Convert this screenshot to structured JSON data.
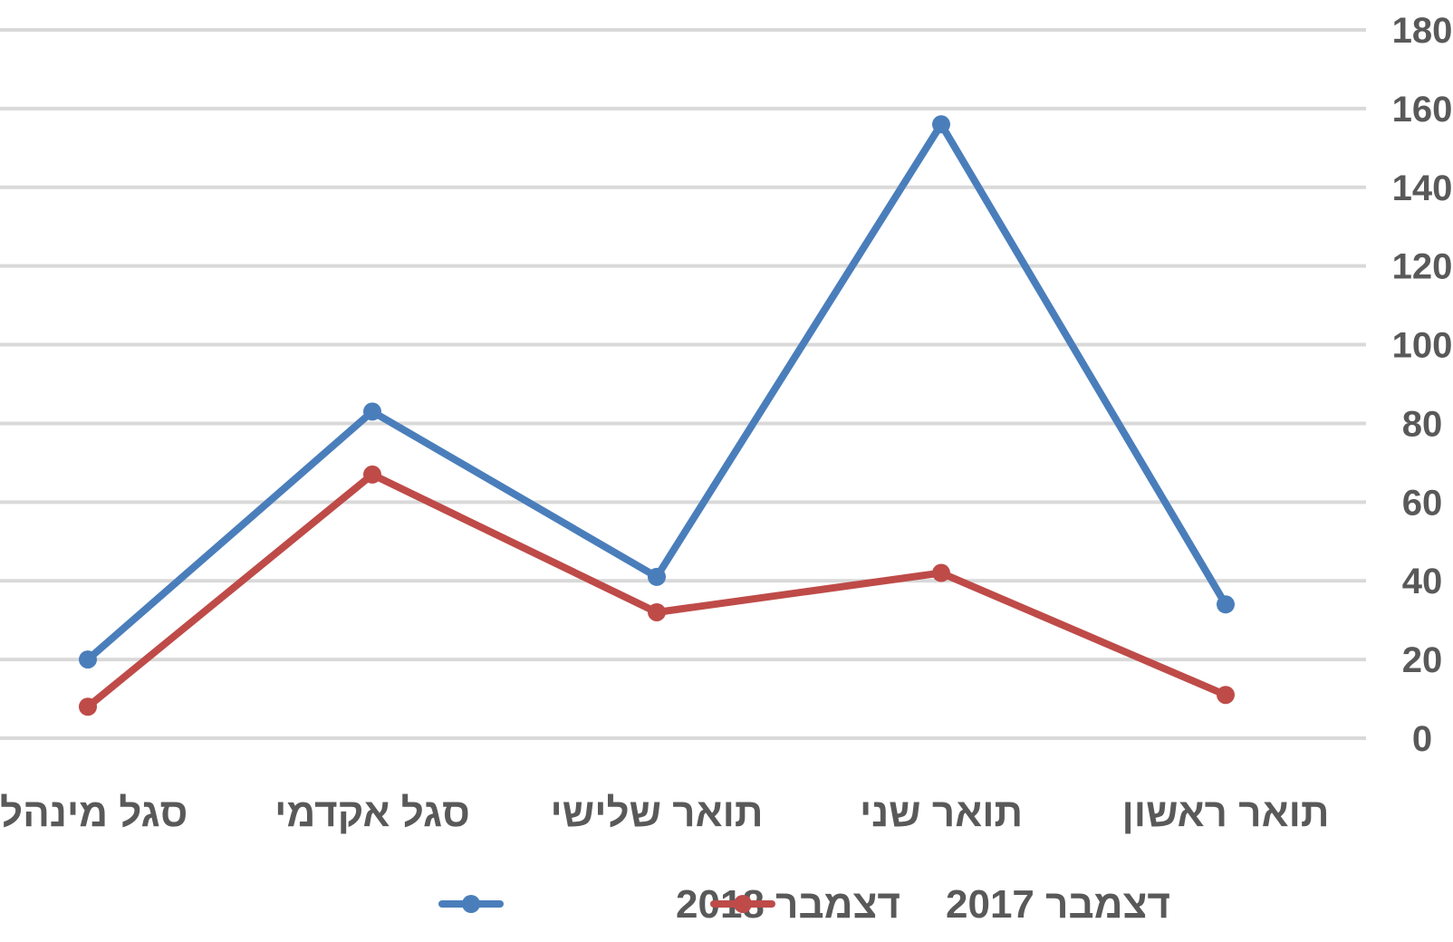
{
  "chart_data": {
    "type": "line",
    "categories": [
      "סגל מינהלי",
      "סגל אקדמי",
      "תואר שלישי",
      "תואר שני",
      "תואר ראשון"
    ],
    "series": [
      {
        "name": "דצמבר 2018",
        "values": [
          20,
          83,
          41,
          156,
          34
        ],
        "color": "#4a7ebb"
      },
      {
        "name": "דצמבר 2017",
        "values": [
          8,
          67,
          32,
          42,
          11
        ],
        "color": "#be4b48"
      }
    ],
    "yticks": [
      "0",
      "20",
      "40",
      "60",
      "80",
      "100",
      "120",
      "140",
      "160",
      "180"
    ],
    "ylim": [
      0,
      180
    ],
    "ytick_step": 20,
    "title": "",
    "xlabel": "",
    "ylabel": "",
    "grid": true,
    "legend_position": "bottom",
    "y_axis_position": "right"
  }
}
